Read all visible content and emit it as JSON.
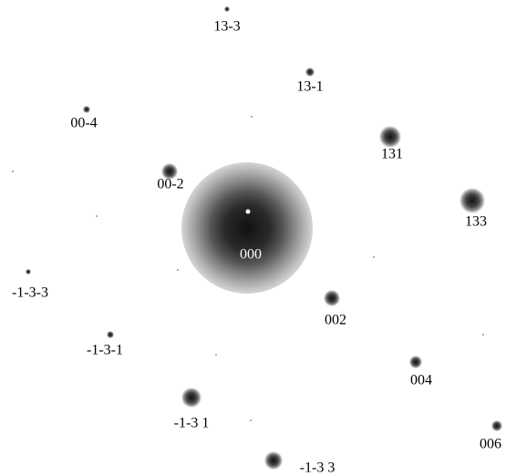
{
  "spots": [
    {
      "label": "13-3"
    },
    {
      "label": "13-1"
    },
    {
      "label": "00-4"
    },
    {
      "label": "131"
    },
    {
      "label": "00-2"
    },
    {
      "label": "133"
    },
    {
      "label": "000"
    },
    {
      "label": "-1-3-3"
    },
    {
      "label": "002"
    },
    {
      "label": "-1-3-1"
    },
    {
      "label": "004"
    },
    {
      "label": "-1-3 1"
    },
    {
      "label": "006"
    },
    {
      "label": "-1-3 3"
    }
  ]
}
